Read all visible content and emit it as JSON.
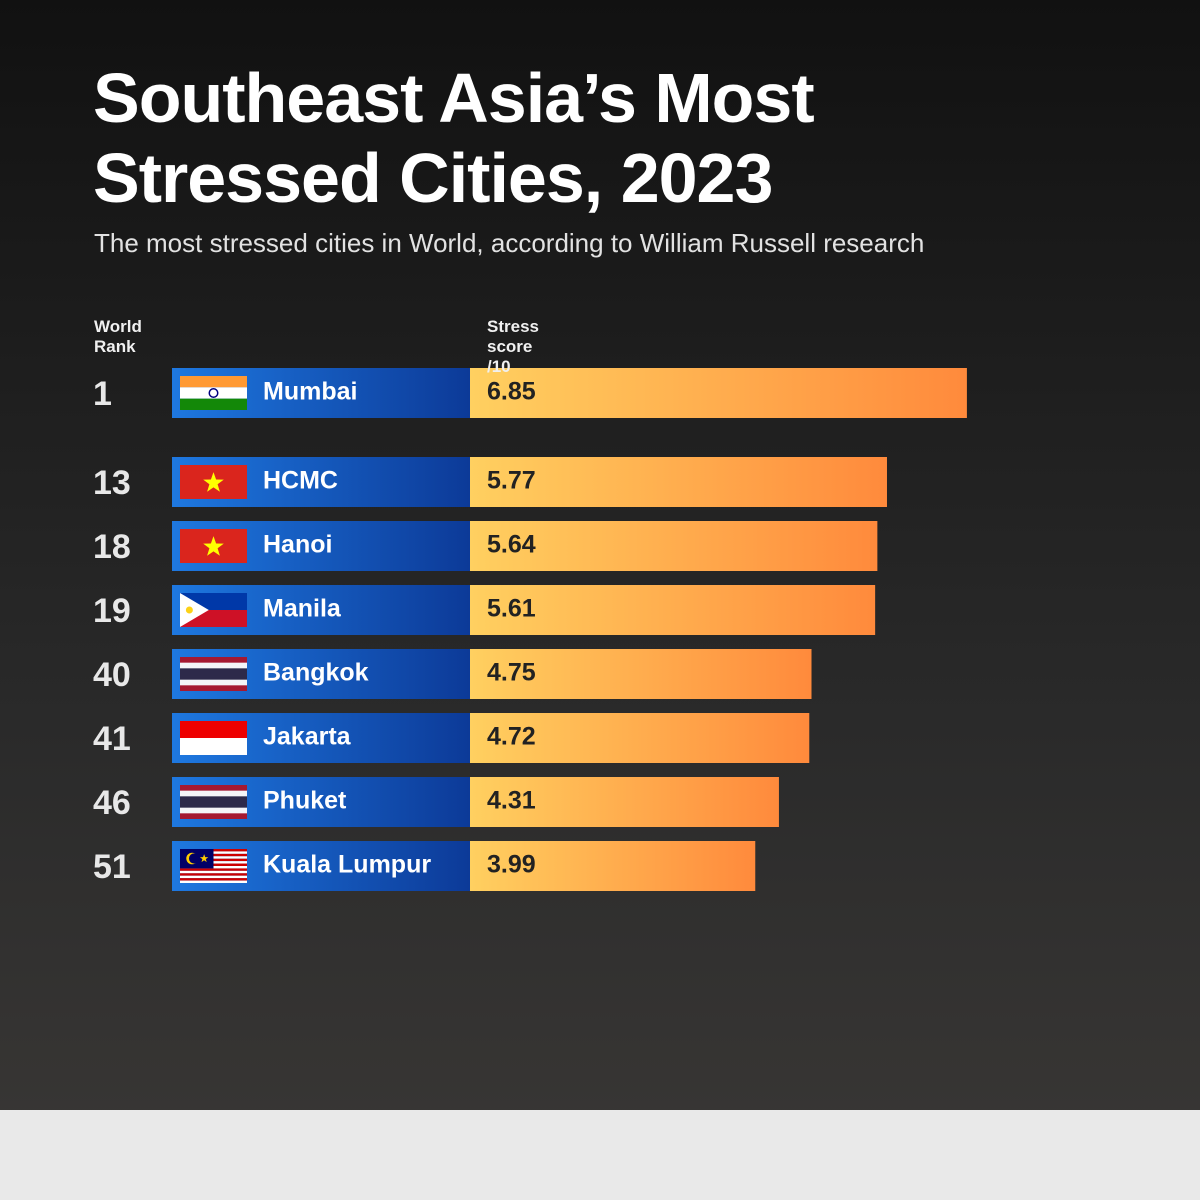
{
  "chart_data": {
    "type": "bar",
    "title": "Southeast Asia’s Most Stressed Cities, 2023",
    "subtitle": "The most stressed cities in World, according to William Russell research",
    "rank_header": "World Rank",
    "value_header": "Stress score /10",
    "ranks": [
      1,
      13,
      18,
      19,
      40,
      41,
      46,
      51
    ],
    "categories": [
      "Mumbai",
      "HCMC",
      "Hanoi",
      "Manila",
      "Bangkok",
      "Jakarta",
      "Phuket",
      "Kuala Lumpur"
    ],
    "values": [
      6.85,
      5.77,
      5.64,
      5.61,
      4.75,
      4.72,
      4.31,
      3.99
    ]
  }
}
